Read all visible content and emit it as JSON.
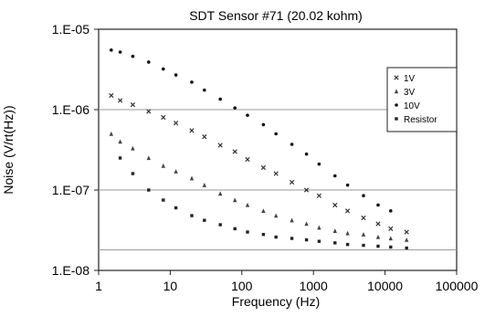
{
  "chart_data": {
    "type": "scatter",
    "title": "SDT Sensor #71 (20.02 kohm)",
    "xlabel": "Frequency (Hz)",
    "ylabel": "Noise (V/rt(Hz))",
    "xscale": "log",
    "yscale": "log",
    "xlim": [
      1,
      100000
    ],
    "ylim": [
      1e-08,
      1e-05
    ],
    "x_tick_labels": [
      "1",
      "10",
      "100",
      "1000",
      "10000",
      "100000"
    ],
    "y_tick_labels": [
      "1.E-08",
      "1.E-07",
      "1.E-06",
      "1.E-05"
    ],
    "y_tick_values": [
      1e-08,
      1e-07,
      1e-06,
      1e-05
    ],
    "grid": "horizontal",
    "grid_values": [
      1.8e-08,
      1e-07,
      1e-06
    ],
    "legend_position": "right",
    "series": [
      {
        "name": "1V",
        "marker": "x",
        "x": [
          1.5,
          2,
          3,
          5,
          8,
          12,
          20,
          30,
          50,
          80,
          120,
          200,
          300,
          500,
          800,
          1200,
          2000,
          3000,
          5000,
          8000,
          12000,
          20000
        ],
        "y": [
          1.5e-06,
          1.3e-06,
          1.15e-06,
          9.5e-07,
          8e-07,
          6.8e-07,
          5.5e-07,
          4.6e-07,
          3.6e-07,
          3e-07,
          2.4e-07,
          1.9e-07,
          1.6e-07,
          1.25e-07,
          1e-07,
          8.5e-08,
          6.5e-08,
          5.5e-08,
          4.5e-08,
          3.8e-08,
          3.3e-08,
          3e-08
        ]
      },
      {
        "name": "3V",
        "marker": "triangle",
        "x": [
          1.5,
          2,
          3,
          5,
          8,
          12,
          20,
          30,
          50,
          80,
          120,
          200,
          300,
          500,
          800,
          1200,
          2000,
          3000,
          5000,
          8000,
          12000,
          20000
        ],
        "y": [
          5e-07,
          4e-07,
          3.3e-07,
          2.5e-07,
          2e-07,
          1.7e-07,
          1.4e-07,
          1.15e-07,
          9e-08,
          7.5e-08,
          6.5e-08,
          5.5e-08,
          4.8e-08,
          4.2e-08,
          3.8e-08,
          3.4e-08,
          3.1e-08,
          2.9e-08,
          2.8e-08,
          2.6e-08,
          2.5e-08,
          2.4e-08
        ]
      },
      {
        "name": "10V",
        "marker": "dot",
        "x": [
          1.5,
          2,
          3,
          5,
          8,
          12,
          20,
          30,
          50,
          80,
          120,
          200,
          300,
          500,
          800,
          1200,
          2000,
          3000,
          5000,
          8000,
          12000
        ],
        "y": [
          5.5e-06,
          5.2e-06,
          4.6e-06,
          3.9e-06,
          3.2e-06,
          2.7e-06,
          2.2e-06,
          1.75e-06,
          1.35e-06,
          1.05e-06,
          8.5e-07,
          6.5e-07,
          5e-07,
          3.7e-07,
          2.8e-07,
          2.1e-07,
          1.5e-07,
          1.15e-07,
          8.5e-08,
          6.5e-08,
          5.5e-08
        ]
      },
      {
        "name": "Resistor",
        "marker": "square",
        "x": [
          2,
          3,
          5,
          8,
          12,
          20,
          30,
          50,
          80,
          120,
          200,
          300,
          500,
          800,
          1200,
          2000,
          3000,
          5000,
          8000,
          12000,
          20000
        ],
        "y": [
          2.5e-07,
          1.6e-07,
          1e-07,
          7.5e-08,
          6e-08,
          4.8e-08,
          4.2e-08,
          3.7e-08,
          3.3e-08,
          3e-08,
          2.8e-08,
          2.6e-08,
          2.5e-08,
          2.4e-08,
          2.3e-08,
          2.2e-08,
          2.1e-08,
          2.05e-08,
          2e-08,
          1.95e-08,
          1.9e-08
        ]
      }
    ]
  }
}
